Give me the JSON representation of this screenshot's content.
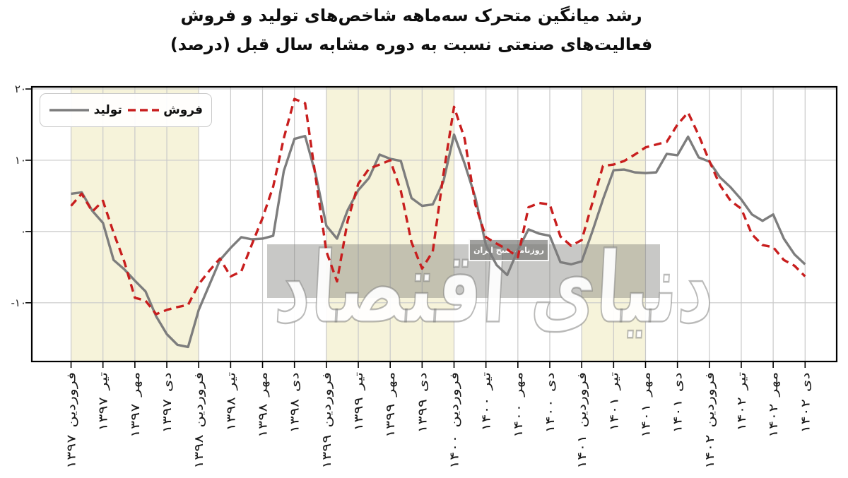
{
  "title": {
    "line1": "رشد میانگین متحرک سه‌ماهه شاخص‌های تولید و فروش",
    "line2": "فعالیت‌های صنعتی نسبت به دوره مشابه سال قبل (درصد)"
  },
  "legend": {
    "production_label": "تولید",
    "sales_label": "فروش"
  },
  "watermark": {
    "main_text": "دنیای اقتصاد",
    "box_text": "روزنامه صبح ایران"
  },
  "chart_data": {
    "type": "line",
    "title": "رشد میانگین متحرک سه‌ماهه شاخص‌های تولید و فروش فعالیت‌های صنعتی نسبت به دوره مشابه سال قبل (درصد)",
    "xlabel": "",
    "ylabel": "",
    "x_unit": "ماه (فروردین ۱۳۹۷ تا دی ۱۴۰۲)",
    "n_points": 70,
    "tick_every_months": 3,
    "x_tick_months": [
      0,
      3,
      6,
      9,
      12,
      15,
      18,
      21,
      24,
      27,
      30,
      33,
      36,
      39,
      42,
      45,
      48,
      51,
      54,
      57,
      60,
      63,
      66,
      69
    ],
    "x_tick_labels": [
      "فروردین ۱۳۹۷",
      "تیر ۱۳۹۷",
      "مهر ۱۳۹۷",
      "دی ۱۳۹۷",
      "فروردین ۱۳۹۸",
      "تیر ۱۳۹۸",
      "مهر ۱۳۹۸",
      "دی ۱۳۹۸",
      "فروردین ۱۳۹۹",
      "تیر ۱۳۹۹",
      "مهر ۱۳۹۹",
      "دی ۱۳۹۹",
      "فروردین ۱۴۰۰",
      "تیر ۱۴۰۰",
      "مهر ۱۴۰۰",
      "دی ۱۴۰۰",
      "فروردین ۱۴۰۱",
      "تیر ۱۴۰۱",
      "مهر ۱۴۰۱",
      "دی ۱۴۰۱",
      "فروردین ۱۴۰۲",
      "تیر ۱۴۰۲",
      "مهر ۱۴۰۲",
      "دی ۱۴۰۲"
    ],
    "yticks": {
      "values": [
        20,
        10,
        0,
        -10
      ],
      "labels": [
        "۲۰",
        "۱۰",
        "۰",
        "-۱۰"
      ]
    },
    "xlim_months": [
      -3.69,
      71.97
    ],
    "ylim": [
      -18.24,
      20.3
    ],
    "grid": true,
    "grid_color": "#c9c9c9",
    "frame_color": "#000000",
    "legend_position": "upper-left",
    "highlight_bands": {
      "color": "#f6f3da",
      "month_ranges": [
        [
          0,
          12
        ],
        [
          24,
          36
        ],
        [
          48,
          54
        ]
      ]
    },
    "series": [
      {
        "name": "تولید",
        "key": "production",
        "style": "solid",
        "color": "#7d7d7d",
        "values": [
          5.3,
          5.5,
          2.9,
          1.2,
          -4.0,
          -5.3,
          -6.9,
          -8.4,
          -11.9,
          -14.4,
          -15.9,
          -16.2,
          -11.0,
          -7.5,
          -4.0,
          -2.3,
          -0.8,
          -1.1,
          -1.0,
          -0.6,
          8.5,
          13.0,
          13.4,
          8.0,
          0.8,
          -1.0,
          3.0,
          5.8,
          7.5,
          10.8,
          10.2,
          9.9,
          4.7,
          3.6,
          3.8,
          7.0,
          13.6,
          9.5,
          4.8,
          -1.9,
          -4.7,
          -6.1,
          -2.6,
          0.3,
          -0.3,
          -0.6,
          -4.3,
          -4.6,
          -4.2,
          0.0,
          4.5,
          8.6,
          8.7,
          8.3,
          8.2,
          8.3,
          10.9,
          10.7,
          13.3,
          10.4,
          9.8,
          7.6,
          6.2,
          4.5,
          2.4,
          1.5,
          2.4,
          -1.0,
          -3.2,
          -4.6
        ]
      },
      {
        "name": "فروش",
        "key": "sales",
        "style": "dashed",
        "color": "#c81e1e",
        "values": [
          3.6,
          5.3,
          2.8,
          4.3,
          -0.2,
          -4.2,
          -9.3,
          -9.7,
          -11.6,
          -11.0,
          -10.6,
          -10.3,
          -7.4,
          -5.5,
          -3.8,
          -6.3,
          -5.6,
          -1.8,
          1.9,
          6.3,
          13.1,
          18.6,
          18.0,
          7.5,
          -2.8,
          -7.0,
          1.5,
          6.7,
          8.8,
          9.4,
          10.0,
          5.7,
          -1.5,
          -5.2,
          -2.8,
          8.0,
          17.5,
          13.0,
          3.8,
          -0.8,
          -1.7,
          -2.5,
          -3.6,
          3.4,
          4.0,
          3.8,
          -0.7,
          -2.0,
          -1.2,
          4.0,
          9.2,
          9.4,
          9.9,
          10.8,
          11.8,
          12.2,
          12.6,
          15.0,
          16.7,
          13.5,
          9.9,
          6.5,
          4.3,
          3.2,
          -0.4,
          -1.9,
          -2.2,
          -4.0,
          -4.8,
          -6.3
        ]
      }
    ]
  }
}
